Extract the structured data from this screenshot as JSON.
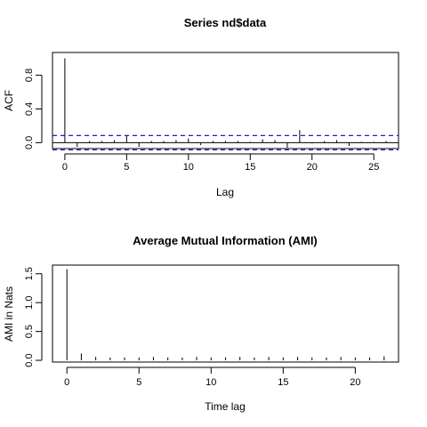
{
  "chart_data": [
    {
      "type": "bar",
      "title": "Series  nd$data",
      "xlabel": "Lag",
      "ylabel": "ACF",
      "xlim": [
        -1,
        27
      ],
      "ylim": [
        -0.07,
        1.07
      ],
      "xticks": [
        0,
        5,
        10,
        15,
        20,
        25
      ],
      "yticks": [
        0.0,
        0.4,
        0.8
      ],
      "ytick_labels": [
        "0.0",
        "0.4",
        "0.8"
      ],
      "confidence_bound": 0.085,
      "confidence_color": "#0000cc",
      "x": [
        0,
        1,
        2,
        3,
        4,
        5,
        6,
        7,
        8,
        9,
        10,
        11,
        12,
        13,
        14,
        15,
        16,
        17,
        18,
        19,
        20,
        21,
        22,
        23,
        24,
        25,
        26
      ],
      "values": [
        1.0,
        -0.05,
        0.02,
        0.02,
        0.03,
        0.08,
        -0.05,
        0.02,
        0.02,
        0.03,
        0.05,
        -0.03,
        0.02,
        0.02,
        0.02,
        0.01,
        0.04,
        0.03,
        -0.06,
        0.15,
        -0.01,
        0.02,
        0.03,
        -0.04,
        0.01,
        0.01,
        0.02
      ]
    },
    {
      "type": "bar",
      "title": "Average Mutual Information (AMI)",
      "xlabel": "Time lag",
      "ylabel": "AMI in Nats",
      "xlim": [
        -1,
        23
      ],
      "ylim": [
        -0.03,
        1.65
      ],
      "xticks": [
        0,
        5,
        10,
        15,
        20
      ],
      "yticks": [
        0.0,
        0.5,
        1.0,
        1.5
      ],
      "ytick_labels": [
        "0.0",
        "0.5",
        "1.0",
        "1.5"
      ],
      "x": [
        0,
        1,
        2,
        3,
        4,
        5,
        6,
        7,
        8,
        9,
        10,
        11,
        12,
        13,
        14,
        15,
        16,
        17,
        18,
        19,
        20,
        21,
        22
      ],
      "values": [
        1.58,
        0.12,
        0.06,
        0.05,
        0.05,
        0.05,
        0.06,
        0.05,
        0.05,
        0.06,
        0.05,
        0.05,
        0.06,
        0.05,
        0.06,
        0.05,
        0.06,
        0.05,
        0.05,
        0.06,
        0.05,
        0.05,
        0.07
      ]
    }
  ]
}
